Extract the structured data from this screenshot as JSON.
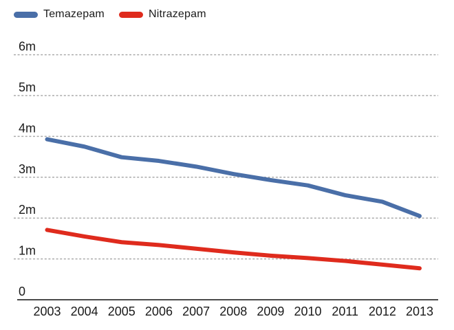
{
  "chart_data": {
    "type": "line",
    "title": "",
    "x": [
      "2003",
      "2004",
      "2005",
      "2006",
      "2007",
      "2008",
      "2009",
      "2010",
      "2011",
      "2012",
      "2013"
    ],
    "series": [
      {
        "name": "Temazepam",
        "color": "#4a6fa8",
        "values": [
          3.93,
          3.75,
          3.49,
          3.4,
          3.26,
          3.08,
          2.93,
          2.8,
          2.56,
          2.4,
          2.05
        ]
      },
      {
        "name": "Nitrazepam",
        "color": "#df2b1d",
        "values": [
          1.71,
          1.55,
          1.41,
          1.34,
          1.25,
          1.16,
          1.08,
          1.02,
          0.95,
          0.86,
          0.77
        ]
      }
    ],
    "ylim": [
      0,
      6
    ],
    "yticks": [
      0,
      1,
      2,
      3,
      4,
      5,
      6
    ],
    "ytick_labels": [
      "0",
      "1m",
      "2m",
      "3m",
      "4m",
      "5m",
      "6m"
    ],
    "unit": "millions",
    "grid": "horizontal-dashed",
    "gridline_color": "#aaaaaa",
    "axis_line_color": "#4a4a4a",
    "text_color": "#1a1a1a",
    "legend_position": "top-left"
  }
}
